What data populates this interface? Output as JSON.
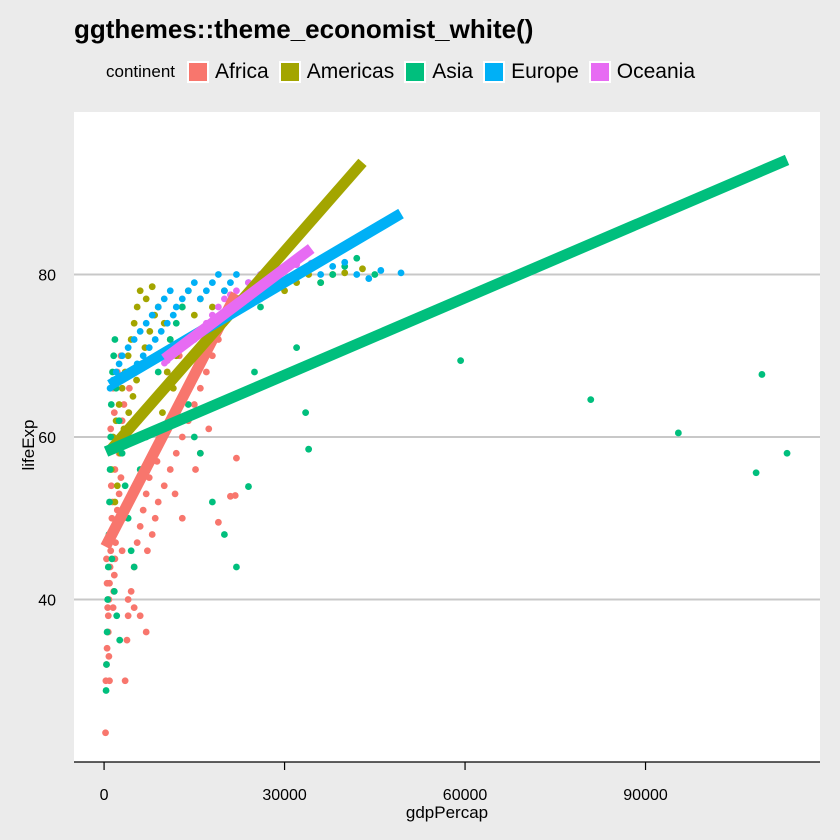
{
  "title": "ggthemes::theme_economist_white()",
  "chart_data": {
    "type": "scatter",
    "xlabel": "gdpPercap",
    "ylabel": "lifeExp",
    "xlim": [
      -5000,
      119000
    ],
    "ylim": [
      20,
      100
    ],
    "xticks": [
      0,
      30000,
      60000,
      90000
    ],
    "yticks": [
      40,
      60,
      80
    ],
    "xtick_labels": [
      "0",
      "30000",
      "60000",
      "90000"
    ],
    "ytick_labels": [
      "40",
      "60",
      "80"
    ],
    "grid": "horizontal major",
    "legend": {
      "title": "continent",
      "placement": "top",
      "entries": [
        {
          "label": "Africa",
          "color": "#F8766D"
        },
        {
          "label": "Americas",
          "color": "#A3A500"
        },
        {
          "label": "Asia",
          "color": "#00BF7D"
        },
        {
          "label": "Europe",
          "color": "#00B0F6"
        },
        {
          "label": "Oceania",
          "color": "#E76BF3"
        }
      ]
    },
    "series": [
      {
        "name": "Africa",
        "color": "#F8766D",
        "fit": [
          [
            241,
            46.5
          ],
          [
            21951,
            77.6
          ]
        ],
        "points": [
          [
            241,
            23.6
          ],
          [
            300,
            30
          ],
          [
            400,
            32
          ],
          [
            500,
            34
          ],
          [
            600,
            36
          ],
          [
            700,
            38
          ],
          [
            800,
            40
          ],
          [
            900,
            42
          ],
          [
            1000,
            44
          ],
          [
            1100,
            46
          ],
          [
            1200,
            48
          ],
          [
            1300,
            50
          ],
          [
            1400,
            52
          ],
          [
            1500,
            39
          ],
          [
            1600,
            41
          ],
          [
            1700,
            43
          ],
          [
            1800,
            45
          ],
          [
            1900,
            47
          ],
          [
            2000,
            49
          ],
          [
            2200,
            51
          ],
          [
            2500,
            53
          ],
          [
            2800,
            55
          ],
          [
            3000,
            46
          ],
          [
            3200,
            50
          ],
          [
            3500,
            30
          ],
          [
            3800,
            35
          ],
          [
            4000,
            38
          ],
          [
            4500,
            41
          ],
          [
            5000,
            44
          ],
          [
            5500,
            47
          ],
          [
            6000,
            49
          ],
          [
            6500,
            51
          ],
          [
            7000,
            53
          ],
          [
            7500,
            55
          ],
          [
            8000,
            48
          ],
          [
            8500,
            50
          ],
          [
            9000,
            52
          ],
          [
            10000,
            54
          ],
          [
            11000,
            56
          ],
          [
            12000,
            58
          ],
          [
            13000,
            60
          ],
          [
            14000,
            62
          ],
          [
            15000,
            64
          ],
          [
            16000,
            66
          ],
          [
            17000,
            68
          ],
          [
            18000,
            70
          ],
          [
            19000,
            72
          ],
          [
            20000,
            74
          ],
          [
            21000,
            52.7
          ],
          [
            21800,
            52.8
          ],
          [
            22000,
            57.4
          ],
          [
            7000,
            36
          ],
          [
            6000,
            38
          ],
          [
            5000,
            39
          ],
          [
            4000,
            40
          ],
          [
            3000,
            62
          ],
          [
            2500,
            58
          ],
          [
            1800,
            56
          ],
          [
            1200,
            54
          ],
          [
            900,
            30
          ],
          [
            800,
            33
          ],
          [
            700,
            36
          ],
          [
            600,
            39
          ],
          [
            500,
            42
          ],
          [
            400,
            45
          ],
          [
            13000,
            50
          ],
          [
            16000,
            58
          ],
          [
            19000,
            49.5
          ],
          [
            10500,
            68
          ],
          [
            11500,
            66
          ],
          [
            12500,
            70
          ],
          [
            14500,
            72
          ],
          [
            1500,
            66
          ],
          [
            2200,
            68
          ],
          [
            2800,
            70
          ],
          [
            1100,
            61
          ],
          [
            1700,
            63
          ],
          [
            3300,
            64
          ],
          [
            4200,
            66
          ],
          [
            5800,
            62
          ],
          [
            8200,
            58
          ],
          [
            9500,
            60
          ],
          [
            7200,
            46
          ],
          [
            8800,
            57
          ],
          [
            11800,
            53
          ],
          [
            15200,
            56
          ],
          [
            17400,
            61
          ]
        ]
      },
      {
        "name": "Americas",
        "color": "#A3A500",
        "fit": [
          [
            1202,
            58.5
          ],
          [
            42952,
            93.8
          ]
        ],
        "points": [
          [
            1200,
            56
          ],
          [
            1500,
            60
          ],
          [
            2000,
            62
          ],
          [
            2500,
            64
          ],
          [
            3000,
            66
          ],
          [
            3500,
            68
          ],
          [
            4000,
            70
          ],
          [
            4500,
            72
          ],
          [
            5000,
            74
          ],
          [
            5500,
            76
          ],
          [
            6000,
            78
          ],
          [
            7000,
            77
          ],
          [
            8000,
            78.5
          ],
          [
            9000,
            76
          ],
          [
            10000,
            74
          ],
          [
            11000,
            72
          ],
          [
            12000,
            70
          ],
          [
            13000,
            76
          ],
          [
            14000,
            78
          ],
          [
            15000,
            75
          ],
          [
            16000,
            77
          ],
          [
            18000,
            76
          ],
          [
            20000,
            78
          ],
          [
            22000,
            76
          ],
          [
            24000,
            78
          ],
          [
            26000,
            77
          ],
          [
            28000,
            79
          ],
          [
            30000,
            78
          ],
          [
            32000,
            79
          ],
          [
            34000,
            80
          ],
          [
            36000,
            79
          ],
          [
            38000,
            80
          ],
          [
            40000,
            80.2
          ],
          [
            42952,
            80.7
          ],
          [
            1800,
            52
          ],
          [
            2200,
            54
          ],
          [
            2700,
            58
          ],
          [
            3300,
            61
          ],
          [
            4100,
            63
          ],
          [
            4800,
            65
          ],
          [
            5400,
            67
          ],
          [
            6200,
            69
          ],
          [
            6800,
            71
          ],
          [
            7600,
            73
          ],
          [
            8400,
            75
          ],
          [
            10500,
            68
          ],
          [
            11500,
            66
          ],
          [
            9700,
            63
          ]
        ]
      },
      {
        "name": "Asia",
        "color": "#00BF7D",
        "fit": [
          [
            331,
            58.2
          ],
          [
            113523,
            94.1
          ]
        ],
        "points": [
          [
            331,
            28.8
          ],
          [
            400,
            32
          ],
          [
            500,
            36
          ],
          [
            600,
            40
          ],
          [
            700,
            44
          ],
          [
            800,
            48
          ],
          [
            900,
            52
          ],
          [
            1000,
            56
          ],
          [
            1100,
            60
          ],
          [
            1200,
            64
          ],
          [
            1400,
            68
          ],
          [
            1600,
            70
          ],
          [
            1800,
            72
          ],
          [
            2000,
            66
          ],
          [
            2500,
            62
          ],
          [
            3000,
            58
          ],
          [
            3500,
            54
          ],
          [
            4000,
            50
          ],
          [
            4500,
            46
          ],
          [
            5000,
            44
          ],
          [
            6000,
            56
          ],
          [
            7000,
            60
          ],
          [
            8000,
            64
          ],
          [
            9000,
            68
          ],
          [
            10000,
            70
          ],
          [
            11000,
            72
          ],
          [
            12000,
            74
          ],
          [
            13000,
            76
          ],
          [
            14000,
            64
          ],
          [
            15000,
            60
          ],
          [
            16000,
            58
          ],
          [
            18000,
            52
          ],
          [
            20000,
            48
          ],
          [
            22000,
            44
          ],
          [
            24000,
            53.9
          ],
          [
            25000,
            68
          ],
          [
            26000,
            76
          ],
          [
            28000,
            78
          ],
          [
            30000,
            79
          ],
          [
            32000,
            71
          ],
          [
            33500,
            63
          ],
          [
            34000,
            58.5
          ],
          [
            36000,
            79
          ],
          [
            38000,
            80
          ],
          [
            40000,
            81
          ],
          [
            42000,
            82
          ],
          [
            45000,
            80
          ],
          [
            59265,
            69.4
          ],
          [
            80894,
            64.6
          ],
          [
            95458,
            60.5
          ],
          [
            108382,
            55.6
          ],
          [
            109348,
            67.7
          ],
          [
            113523,
            58
          ],
          [
            1300,
            45
          ],
          [
            1700,
            41
          ],
          [
            2100,
            38
          ],
          [
            2600,
            35
          ]
        ]
      },
      {
        "name": "Europe",
        "color": "#00B0F6",
        "fit": [
          [
            974,
            66.4
          ],
          [
            49357,
            87.5
          ]
        ],
        "points": [
          [
            1000,
            66
          ],
          [
            1500,
            67
          ],
          [
            2000,
            68
          ],
          [
            2500,
            69
          ],
          [
            3000,
            70
          ],
          [
            4000,
            71
          ],
          [
            5000,
            72
          ],
          [
            6000,
            73
          ],
          [
            7000,
            74
          ],
          [
            8000,
            75
          ],
          [
            9000,
            76
          ],
          [
            10000,
            77
          ],
          [
            11000,
            78
          ],
          [
            12000,
            76
          ],
          [
            13000,
            77
          ],
          [
            14000,
            78
          ],
          [
            15000,
            79
          ],
          [
            16000,
            77
          ],
          [
            17000,
            78
          ],
          [
            18000,
            79
          ],
          [
            19000,
            80
          ],
          [
            20000,
            78
          ],
          [
            21000,
            79
          ],
          [
            22000,
            80
          ],
          [
            24000,
            79
          ],
          [
            26000,
            80
          ],
          [
            28000,
            81
          ],
          [
            30000,
            79
          ],
          [
            32000,
            80
          ],
          [
            34000,
            81
          ],
          [
            36000,
            80
          ],
          [
            38000,
            81
          ],
          [
            40000,
            81.5
          ],
          [
            42000,
            80
          ],
          [
            44000,
            79.5
          ],
          [
            46000,
            80.5
          ],
          [
            49357,
            80.2
          ],
          [
            5500,
            69
          ],
          [
            6500,
            70
          ],
          [
            7500,
            71
          ],
          [
            8500,
            72
          ],
          [
            9500,
            73
          ],
          [
            10500,
            74
          ],
          [
            11500,
            75
          ]
        ]
      },
      {
        "name": "Oceania",
        "color": "#E76BF3",
        "fit": [
          [
            10040,
            69.6
          ],
          [
            34435,
            83.2
          ]
        ],
        "points": [
          [
            10040,
            69.1
          ],
          [
            10500,
            69.4
          ],
          [
            11000,
            70
          ],
          [
            12000,
            70.5
          ],
          [
            13000,
            71
          ],
          [
            14000,
            71.5
          ],
          [
            15000,
            72
          ],
          [
            16000,
            73
          ],
          [
            17000,
            74
          ],
          [
            18000,
            75
          ],
          [
            19000,
            76
          ],
          [
            20000,
            77
          ],
          [
            22000,
            78
          ],
          [
            24000,
            79
          ],
          [
            26000,
            80
          ],
          [
            28000,
            80.5
          ],
          [
            30000,
            81
          ],
          [
            32000,
            81.2
          ],
          [
            34435,
            81.4
          ],
          [
            21000,
            77.5
          ]
        ]
      }
    ]
  }
}
